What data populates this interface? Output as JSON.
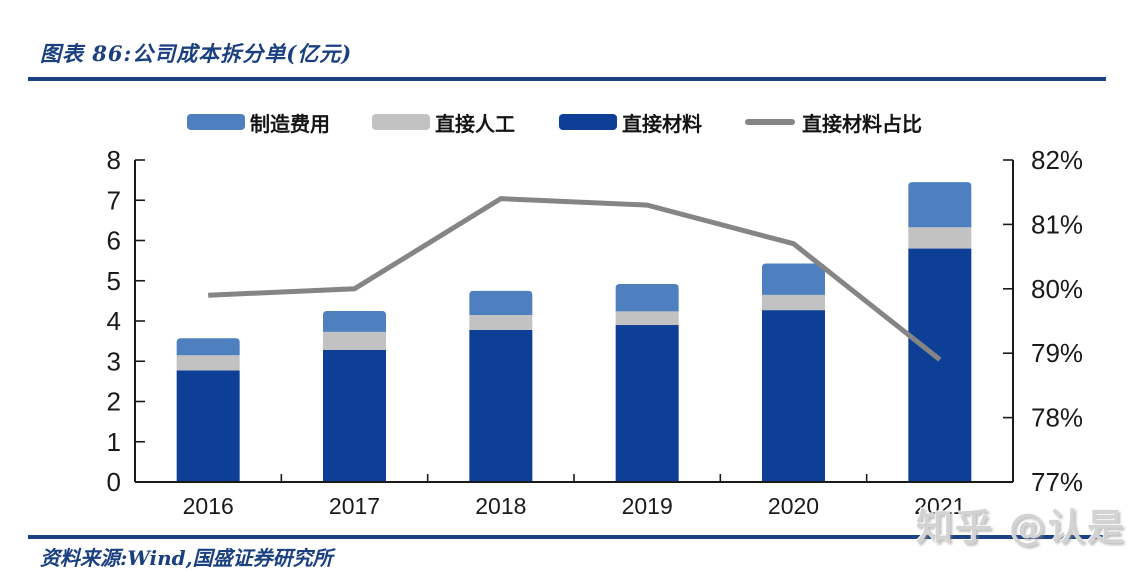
{
  "figure": {
    "title": "图表 86:公司成本拆分单(亿元)",
    "source": "资料来源:Wind,国盛证券研究所",
    "watermark": "知乎 @认是"
  },
  "colors": {
    "heading_navy": "#1B4080",
    "rule_navy": "#1A4284",
    "axis_black": "#1a1a1a",
    "bar_manufacturing_blue": "#4E80C0",
    "bar_labor_gray": "#C2C2C2",
    "bar_materials_navy": "#0E3F97",
    "ratio_line_gray": "#858585",
    "watermark_gray": "#D3D3D3"
  },
  "chart_data": {
    "type": "bar",
    "subtype": "stacked-columns-with-secondary-axis-line",
    "title": "公司成本拆分单(亿元)",
    "categories": [
      "2016",
      "2017",
      "2018",
      "2019",
      "2020",
      "2021"
    ],
    "series": [
      {
        "name": "制造费用",
        "type": "bar",
        "color": "#4E80C0",
        "values": [
          0.42,
          0.52,
          0.6,
          0.68,
          0.78,
          1.12
        ]
      },
      {
        "name": "直接人工",
        "type": "bar",
        "color": "#C2C2C2",
        "values": [
          0.38,
          0.45,
          0.37,
          0.34,
          0.38,
          0.53
        ]
      },
      {
        "name": "直接材料",
        "type": "bar",
        "color": "#0E3F97",
        "values": [
          2.77,
          3.28,
          3.78,
          3.9,
          4.27,
          5.8
        ]
      },
      {
        "name": "直接材料占比",
        "type": "line",
        "axis": "right",
        "color": "#858585",
        "values": [
          79.9,
          80.0,
          81.4,
          81.3,
          80.7,
          78.9
        ]
      }
    ],
    "stack_order_bottom_to_top": [
      "直接材料",
      "直接人工",
      "制造费用"
    ],
    "totals": [
      3.57,
      4.25,
      4.75,
      4.92,
      5.43,
      7.45
    ],
    "left_axis": {
      "min": 0,
      "max": 8,
      "ticks": [
        "0",
        "1",
        "2",
        "3",
        "4",
        "5",
        "6",
        "7",
        "8"
      ]
    },
    "right_axis": {
      "min": 77,
      "max": 82,
      "ticks": [
        "77%",
        "78%",
        "79%",
        "80%",
        "81%",
        "82%"
      ]
    },
    "legend_position": "top",
    "grid": false
  }
}
